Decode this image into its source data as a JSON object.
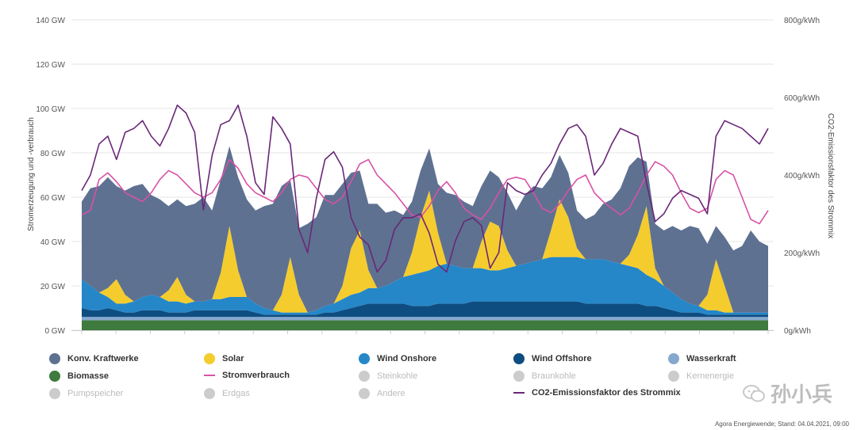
{
  "chart_data": {
    "type": "area",
    "ylabel": "Stromerzeugung und -verbrauch",
    "y2label": "CO2-Emissionsfaktor des Strommix",
    "ylim": [
      0,
      140
    ],
    "y2lim": [
      0,
      800
    ],
    "yticks": [
      "0 GW",
      "20 GW",
      "40 GW",
      "60 GW",
      "80 GW",
      "100 GW",
      "120 GW",
      "140 GW"
    ],
    "y2ticks": [
      "0g/kWh",
      "200g/kWh",
      "400g/kWh",
      "600g/kWh",
      "800g/kWh"
    ],
    "x_points": 80,
    "stacked_series": [
      {
        "name": "Biomasse",
        "color": "#3f7a3f",
        "values": [
          4.5,
          4.5,
          4.5,
          4.5,
          4.5,
          4.5,
          4.5,
          4.5,
          4.5,
          4.5,
          4.5,
          4.5,
          4.5,
          4.5,
          4.5,
          4.5,
          4.5,
          4.5,
          4.5,
          4.5,
          4.5,
          4.5,
          4.5,
          4.5,
          4.5,
          4.5,
          4.5,
          4.5,
          4.5,
          4.5,
          4.5,
          4.5,
          4.5,
          4.5,
          4.5,
          4.5,
          4.5,
          4.5,
          4.5,
          4.5,
          4.5,
          4.5,
          4.5,
          4.5,
          4.5,
          4.5,
          4.5,
          4.5,
          4.5,
          4.5,
          4.5,
          4.5,
          4.5,
          4.5,
          4.5,
          4.5,
          4.5,
          4.5,
          4.5,
          4.5,
          4.5,
          4.5,
          4.5,
          4.5,
          4.5,
          4.5,
          4.5,
          4.5,
          4.5,
          4.5,
          4.5,
          4.5,
          4.5,
          4.5,
          4.5,
          4.5,
          4.5,
          4.5,
          4.5,
          4.5
        ]
      },
      {
        "name": "Wasserkraft",
        "color": "#86a8cf",
        "values": [
          1.5,
          1.5,
          1.5,
          1.5,
          1.5,
          1.5,
          1.5,
          1.5,
          1.5,
          1.5,
          1.5,
          1.5,
          1.5,
          1.5,
          1.5,
          1.5,
          1.5,
          1.5,
          1.5,
          1.5,
          1.5,
          1.5,
          1.5,
          1.5,
          1.5,
          1.5,
          1.5,
          1.5,
          1.5,
          1.5,
          1.5,
          1.5,
          1.5,
          1.5,
          1.5,
          1.5,
          1.5,
          1.5,
          1.5,
          1.5,
          1.5,
          1.5,
          1.5,
          1.5,
          1.5,
          1.5,
          1.5,
          1.5,
          1.5,
          1.5,
          1.5,
          1.5,
          1.5,
          1.5,
          1.5,
          1.5,
          1.5,
          1.5,
          1.5,
          1.5,
          1.5,
          1.5,
          1.5,
          1.5,
          1.5,
          1.5,
          1.5,
          1.5,
          1.5,
          1.5,
          1.5,
          1.5,
          1.5,
          1.5,
          1.5,
          1.5,
          1.5,
          1.5,
          1.5,
          1.5
        ]
      },
      {
        "name": "Wind Offshore",
        "color": "#0e4d80",
        "values": [
          4,
          3,
          3,
          4,
          3,
          2,
          2,
          3,
          3,
          3,
          2,
          2,
          2,
          3,
          3,
          3,
          3,
          3,
          3,
          3,
          2,
          1,
          1,
          1,
          1,
          1,
          1,
          1,
          2,
          2,
          3,
          4,
          5,
          6,
          6,
          6,
          6,
          6,
          5,
          5,
          5,
          6,
          6,
          6,
          6,
          7,
          7,
          7,
          7,
          7,
          7,
          7,
          7,
          7,
          7,
          7,
          7,
          7,
          6,
          6,
          6,
          6,
          6,
          6,
          6,
          5,
          5,
          4,
          3,
          2,
          2,
          2,
          1,
          1,
          1,
          1,
          1,
          1,
          1,
          1
        ]
      },
      {
        "name": "Wind Onshore",
        "color": "#2587c8",
        "values": [
          13,
          11,
          8,
          5,
          3,
          4,
          5,
          6,
          7,
          6,
          5,
          5,
          4,
          4,
          4,
          5,
          5,
          6,
          6,
          6,
          4,
          3,
          2,
          1,
          1,
          1,
          1,
          2,
          3,
          4,
          5,
          6,
          6,
          7,
          7,
          8,
          10,
          12,
          14,
          15,
          16,
          17,
          18,
          17,
          16,
          15,
          15,
          14,
          14,
          15,
          16,
          17,
          18,
          19,
          20,
          20,
          20,
          20,
          20,
          20,
          20,
          19,
          18,
          17,
          16,
          14,
          12,
          10,
          8,
          6,
          4,
          3,
          2,
          2,
          1,
          1,
          1,
          1,
          1,
          1
        ]
      },
      {
        "name": "Solar",
        "color": "#f5cc2e",
        "values": [
          0,
          0,
          0,
          4,
          11,
          4,
          0,
          0,
          0,
          0,
          5,
          11,
          4,
          0,
          0,
          0,
          12,
          32,
          12,
          0,
          0,
          0,
          0,
          8,
          25,
          8,
          0,
          0,
          0,
          0,
          6,
          21,
          28,
          8,
          0,
          0,
          0,
          0,
          10,
          25,
          36,
          15,
          0,
          0,
          0,
          0,
          12,
          22,
          20,
          8,
          0,
          0,
          0,
          0,
          12,
          26,
          18,
          4,
          0,
          0,
          0,
          0,
          0,
          5,
          15,
          31,
          5,
          0,
          0,
          0,
          0,
          0,
          7,
          23,
          12,
          0,
          0,
          0,
          0,
          0
        ]
      },
      {
        "name": "Konv. Kraftwerke",
        "color": "#5e7191",
        "values": [
          35,
          44,
          48,
          50,
          42,
          47,
          52,
          51,
          45,
          44,
          38,
          35,
          40,
          44,
          47,
          40,
          42,
          36,
          42,
          44,
          42,
          46,
          48,
          49,
          35,
          30,
          40,
          42,
          50,
          49,
          46,
          34,
          27,
          30,
          38,
          33,
          32,
          28,
          23,
          21,
          19,
          22,
          32,
          32,
          30,
          28,
          25,
          23,
          22,
          26,
          25,
          31,
          34,
          32,
          24,
          20,
          20,
          17,
          18,
          20,
          25,
          28,
          34,
          40,
          35,
          20,
          20,
          25,
          30,
          31,
          35,
          35,
          23,
          15,
          22,
          28,
          30,
          37,
          32,
          30
        ]
      }
    ],
    "lines": [
      {
        "name": "Stromverbrauch",
        "color": "#d752a6",
        "axis": "left",
        "values": [
          52,
          54,
          68,
          71,
          67,
          62,
          60,
          58,
          62,
          68,
          72,
          70,
          66,
          62,
          60,
          62,
          68,
          77,
          73,
          66,
          62,
          60,
          58,
          62,
          68,
          70,
          69,
          64,
          59,
          57,
          60,
          67,
          75,
          77,
          70,
          66,
          62,
          57,
          52,
          51,
          56,
          63,
          67,
          62,
          55,
          52,
          50,
          55,
          62,
          68,
          69,
          68,
          62,
          55,
          53,
          57,
          63,
          68,
          70,
          62,
          58,
          55,
          52,
          55,
          62,
          70,
          76,
          74,
          70,
          62,
          55,
          53,
          55,
          68,
          72,
          70,
          60,
          50,
          48,
          54
        ]
      },
      {
        "name": "CO2-Emissionsfaktor des Strommix",
        "color": "#6a2778",
        "axis": "right",
        "values": [
          360,
          400,
          480,
          500,
          440,
          510,
          520,
          540,
          500,
          475,
          520,
          580,
          560,
          510,
          310,
          450,
          530,
          540,
          580,
          500,
          380,
          350,
          550,
          520,
          480,
          260,
          200,
          340,
          440,
          460,
          420,
          290,
          240,
          220,
          150,
          180,
          260,
          290,
          290,
          300,
          250,
          170,
          150,
          230,
          280,
          290,
          270,
          160,
          200,
          380,
          360,
          350,
          360,
          400,
          430,
          480,
          520,
          530,
          500,
          400,
          430,
          480,
          520,
          510,
          500,
          380,
          280,
          300,
          340,
          360,
          350,
          340,
          300,
          500,
          540,
          530,
          520,
          500,
          480,
          520
        ]
      }
    ],
    "legend": [
      {
        "label": "Konv. Kraftwerke",
        "color": "#5e7191",
        "kind": "dot",
        "active": true
      },
      {
        "label": "Solar",
        "color": "#f5cc2e",
        "kind": "dot",
        "active": true
      },
      {
        "label": "Wind Onshore",
        "color": "#2587c8",
        "kind": "dot",
        "active": true
      },
      {
        "label": "Wind Offshore",
        "color": "#0e4d80",
        "kind": "dot",
        "active": true
      },
      {
        "label": "Wasserkraft",
        "color": "#86a8cf",
        "kind": "dot",
        "active": true
      },
      {
        "label": "Biomasse",
        "color": "#3f7a3f",
        "kind": "dot",
        "active": true
      },
      {
        "label": "Stromverbrauch",
        "color": "#d752a6",
        "kind": "line",
        "active": true
      },
      {
        "label": "Steinkohle",
        "color": "#cccccc",
        "kind": "dot",
        "active": false
      },
      {
        "label": "Braunkohle",
        "color": "#cccccc",
        "kind": "dot",
        "active": false
      },
      {
        "label": "Kernenergie",
        "color": "#cccccc",
        "kind": "dot",
        "active": false
      },
      {
        "label": "Pumpspeicher",
        "color": "#cccccc",
        "kind": "dot",
        "active": false
      },
      {
        "label": "Erdgas",
        "color": "#cccccc",
        "kind": "dot",
        "active": false
      },
      {
        "label": "Andere",
        "color": "#cccccc",
        "kind": "dot",
        "active": false
      },
      {
        "label": "CO2-Emissionsfaktor des Strommix",
        "color": "#6a2778",
        "kind": "line",
        "active": true
      }
    ]
  },
  "source": "Agora Energiewende; Stand: 04.04.2021, 09:00",
  "watermark": "孙小兵"
}
